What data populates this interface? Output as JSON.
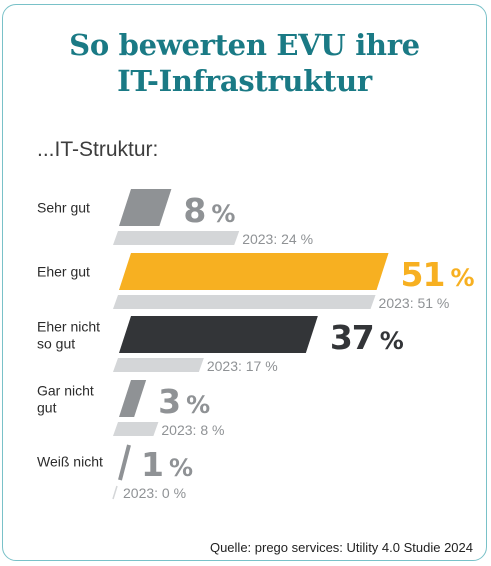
{
  "title_line1": "So bewerten EVU ihre",
  "title_line2": "IT-Infrastruktur",
  "subtitle": "...IT-Struktur:",
  "source": "Quelle: prego services: Utility 4.0 Studie 2024",
  "colors": {
    "title": "#1a7a85",
    "border": "#79c1c8",
    "bar_sehr_gut": "#8f9295",
    "bar_eher_gut": "#f7b021",
    "bar_eher_nicht": "#333538",
    "bar_gar_nicht": "#8f9295",
    "bar_weiss_nicht": "#8f9295",
    "bar_2023": "#d4d6d8",
    "label_2023": "#8f9295"
  },
  "chart_data": {
    "type": "bar",
    "orientation": "horizontal",
    "categories": [
      "Sehr gut",
      "Eher gut",
      "Eher nicht so gut",
      "Gar nicht gut",
      "Weiß nicht"
    ],
    "category_lines": [
      [
        "Sehr gut"
      ],
      [
        "Eher gut"
      ],
      [
        "Eher nicht",
        "so gut"
      ],
      [
        "Gar nicht",
        "gut"
      ],
      [
        "Weiß nicht"
      ]
    ],
    "series": [
      {
        "values": [
          8,
          51,
          37,
          3,
          1
        ],
        "labels": [
          "8 %",
          "51 %",
          "37 %",
          "3 %",
          "1 %"
        ],
        "colors": [
          "#8f9295",
          "#f7b021",
          "#333538",
          "#8f9295",
          "#8f9295"
        ]
      },
      {
        "values": [
          24,
          51,
          17,
          8,
          0
        ],
        "labels": [
          "2023: 24 %",
          "2023: 51 %",
          "2023: 17 %",
          "2023: 8 %",
          "2023: 0 %"
        ],
        "colors": [
          "#d4d6d8",
          "#d4d6d8",
          "#d4d6d8",
          "#d4d6d8",
          "#d4d6d8"
        ]
      }
    ],
    "unit": "%",
    "xlim": [
      0,
      51
    ],
    "grid": false
  }
}
